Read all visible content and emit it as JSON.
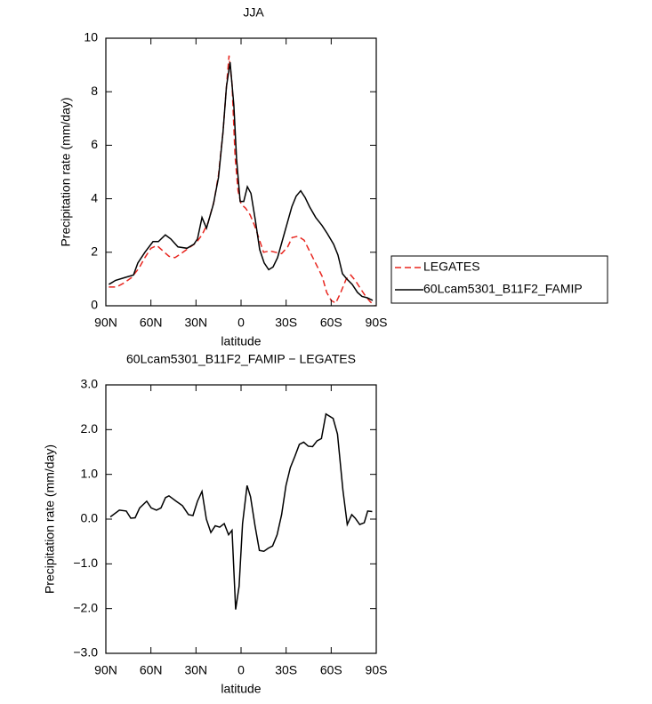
{
  "chart_data": [
    {
      "type": "line",
      "title": "JJA",
      "xlabel": "latitude",
      "ylabel": "Precipitation rate (mm/day)",
      "xlim": [
        90,
        -90
      ],
      "xticks": [
        {
          "value": 90,
          "label": "90N"
        },
        {
          "value": 60,
          "label": "60N"
        },
        {
          "value": 30,
          "label": "30N"
        },
        0,
        {
          "value": -30,
          "label": "30S"
        },
        {
          "value": -60,
          "label": "60S"
        },
        {
          "value": -90,
          "label": "90S"
        }
      ],
      "ylim": [
        0,
        10
      ],
      "yticks": [
        0,
        2,
        4,
        6,
        8,
        10
      ],
      "legend": "right",
      "series": [
        {
          "name": "LEGATES",
          "color": "#e8261f",
          "dash": true,
          "x": [
            88,
            83,
            78,
            73,
            68,
            64,
            60,
            56,
            52,
            48,
            44,
            40,
            35,
            30,
            26,
            22,
            18,
            15,
            12,
            10,
            8,
            6,
            4,
            2,
            0,
            -3,
            -6,
            -9,
            -12,
            -15,
            -19,
            -23,
            -27,
            -31,
            -34,
            -38,
            -42,
            -46,
            -50,
            -54,
            -57,
            -60,
            -63,
            -66,
            -70,
            -73,
            -76,
            -80,
            -83,
            -86,
            -89
          ],
          "values": [
            0.7,
            0.7,
            0.85,
            1.05,
            1.4,
            1.8,
            2.15,
            2.25,
            2.05,
            1.85,
            1.8,
            1.95,
            2.15,
            2.35,
            2.65,
            3.1,
            3.9,
            4.9,
            6.5,
            8.0,
            9.35,
            8.3,
            5.6,
            4.3,
            3.8,
            3.65,
            3.4,
            3.0,
            2.5,
            2.0,
            2.05,
            2.0,
            1.95,
            2.2,
            2.55,
            2.6,
            2.45,
            2.0,
            1.55,
            1.1,
            0.5,
            0.2,
            0.1,
            0.45,
            1.0,
            1.15,
            0.95,
            0.6,
            0.35,
            0.15,
            0.0
          ]
        },
        {
          "name": "60Lcam5301_B11F2_FAMIP",
          "color": "#000000",
          "dash": false,
          "x": [
            88,
            83.5,
            77.6,
            71.6,
            68.7,
            64,
            58.6,
            55,
            50.4,
            46.8,
            42,
            36,
            31.4,
            29,
            26,
            23,
            18.4,
            15,
            12,
            9.7,
            7.3,
            4.8,
            3,
            0.6,
            -1.8,
            -4.2,
            -6.6,
            -9.5,
            -12.4,
            -15.4,
            -18.4,
            -21.3,
            -24.3,
            -27.8,
            -30.8,
            -33.8,
            -36.7,
            -39.7,
            -42.6,
            -45.6,
            -49.7,
            -53.9,
            -57.4,
            -61.6,
            -64.5,
            -67.5,
            -70.4,
            -74,
            -77.5,
            -80.5,
            -84,
            -87.6
          ],
          "values": [
            0.8,
            0.95,
            1.05,
            1.15,
            1.6,
            2.0,
            2.4,
            2.4,
            2.65,
            2.5,
            2.2,
            2.15,
            2.3,
            2.5,
            3.3,
            2.9,
            3.8,
            4.8,
            6.5,
            8.2,
            9.1,
            7.5,
            5.5,
            3.9,
            3.9,
            4.45,
            4.2,
            3.2,
            2.1,
            1.6,
            1.35,
            1.45,
            1.8,
            2.5,
            3.1,
            3.7,
            4.1,
            4.3,
            4.05,
            3.7,
            3.3,
            3.0,
            2.7,
            2.3,
            1.9,
            1.2,
            1.0,
            0.8,
            0.5,
            0.35,
            0.3,
            0.2
          ]
        }
      ]
    },
    {
      "type": "line",
      "title": "60Lcam5301_B11F2_FAMIP − LEGATES",
      "xlabel": "latitude",
      "ylabel": "Precipitation rate (mm/day)",
      "xlim": [
        90,
        -90
      ],
      "xticks": [
        {
          "value": 90,
          "label": "90N"
        },
        {
          "value": 60,
          "label": "60N"
        },
        {
          "value": 30,
          "label": "30N"
        },
        0,
        {
          "value": -30,
          "label": "30S"
        },
        {
          "value": -60,
          "label": "60S"
        },
        {
          "value": -90,
          "label": "90S"
        }
      ],
      "ylim": [
        -3,
        3
      ],
      "yticks": [
        {
          "value": -3,
          "label": "−3.0"
        },
        {
          "value": -2,
          "label": "−2.0"
        },
        {
          "value": -1,
          "label": "−1.0"
        },
        {
          "value": 0,
          "label": "0.0"
        },
        {
          "value": 1,
          "label": "1.0"
        },
        {
          "value": 2,
          "label": "2.0"
        },
        {
          "value": 3,
          "label": "3.0"
        }
      ],
      "series": [
        {
          "color": "#000000",
          "dash": false,
          "x": [
            87,
            81,
            76.4,
            73.4,
            70.5,
            67.5,
            62.8,
            59.8,
            56.3,
            53.3,
            50.3,
            48,
            43.2,
            39,
            35,
            32,
            29,
            26,
            23.1,
            20.1,
            17.2,
            14.2,
            11.2,
            8.3,
            6,
            3.6,
            1.3,
            -1,
            -4,
            -6.3,
            -9.3,
            -12.2,
            -15.2,
            -18.1,
            -21,
            -24,
            -27,
            -29.9,
            -32.8,
            -35.8,
            -38.8,
            -41.7,
            -44.7,
            -47.6,
            -50.6,
            -53.5,
            -56.5,
            -61.3,
            -64.2,
            -67.8,
            -70.7,
            -73.7,
            -76,
            -79,
            -82,
            -84.3,
            -87.3
          ],
          "values": [
            0.05,
            0.2,
            0.18,
            0.02,
            0.03,
            0.25,
            0.4,
            0.25,
            0.2,
            0.25,
            0.48,
            0.52,
            0.4,
            0.3,
            0.1,
            0.08,
            0.4,
            0.62,
            0.0,
            -0.3,
            -0.15,
            -0.18,
            -0.1,
            -0.35,
            -0.25,
            -2.02,
            -1.5,
            -0.1,
            0.75,
            0.5,
            -0.15,
            -0.7,
            -0.72,
            -0.65,
            -0.6,
            -0.35,
            0.1,
            0.75,
            1.15,
            1.4,
            1.67,
            1.72,
            1.63,
            1.62,
            1.75,
            1.8,
            2.35,
            2.25,
            1.9,
            0.65,
            -0.12,
            0.1,
            0.02,
            -0.12,
            -0.08,
            0.18,
            0.17
          ]
        }
      ]
    }
  ]
}
